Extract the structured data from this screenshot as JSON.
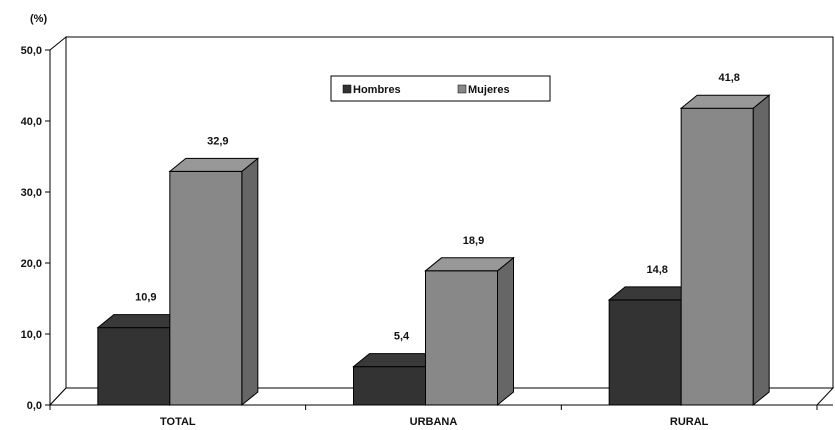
{
  "chart_data": {
    "type": "bar",
    "unit_label": "(%)",
    "categories": [
      "TOTAL",
      "URBANA",
      "RURAL"
    ],
    "series": [
      {
        "name": "Hombres",
        "values": [
          10.9,
          5.4,
          14.8
        ],
        "labels": [
          "10,9",
          "5,4",
          "14,8"
        ]
      },
      {
        "name": "Mujeres",
        "values": [
          32.9,
          18.9,
          41.8
        ],
        "labels": [
          "32,9",
          "18,9",
          "41,8"
        ]
      }
    ],
    "ylim": [
      0,
      50
    ],
    "yticks": [
      0,
      10,
      20,
      30,
      40,
      50
    ],
    "ytick_labels": [
      "0,0",
      "10,0",
      "20,0",
      "30,0",
      "40,0",
      "50,0"
    ],
    "legend_position": "top-center",
    "grid": false,
    "three_d": true
  },
  "colors": {
    "Hombres": "#333333",
    "Mujeres": "#888888"
  }
}
